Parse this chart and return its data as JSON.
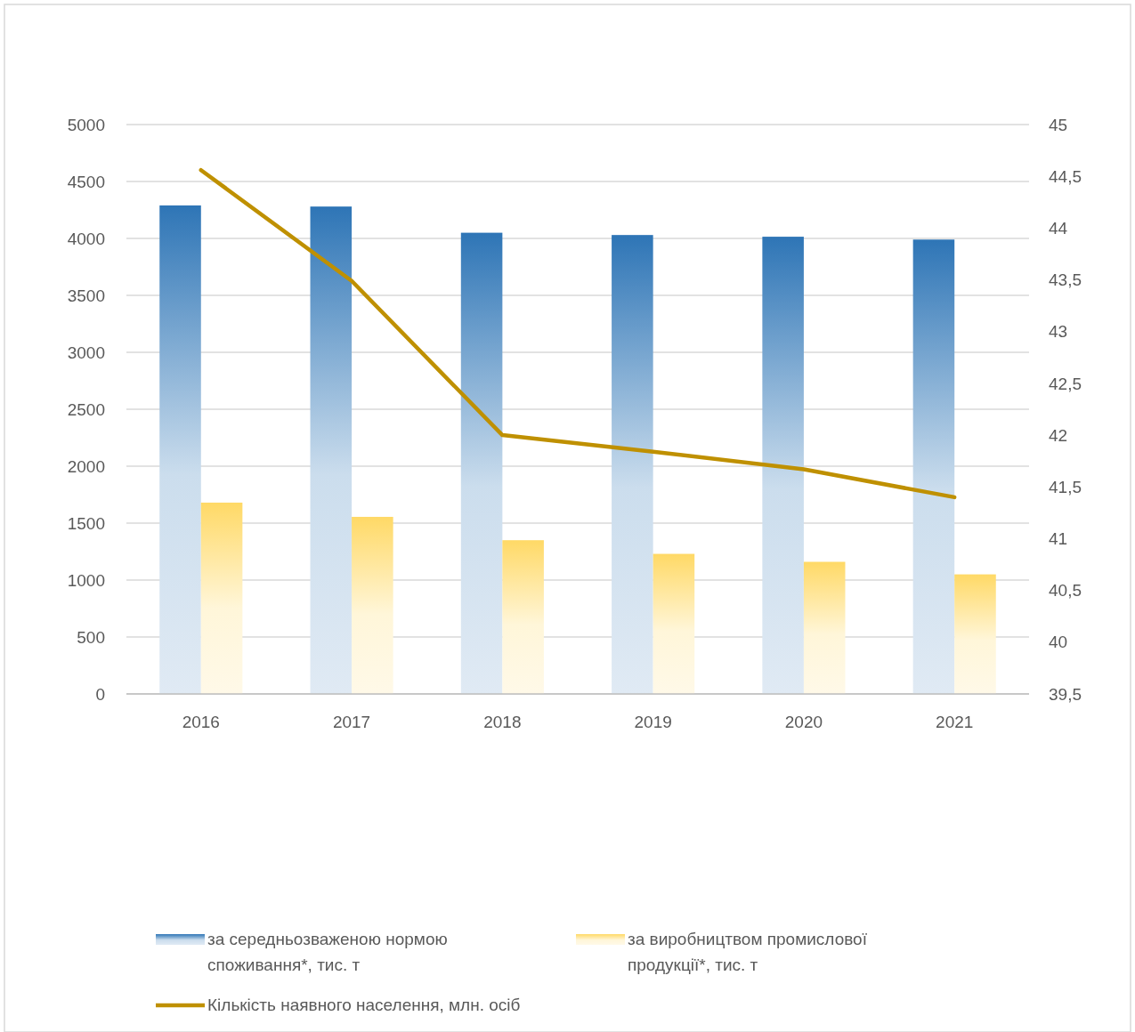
{
  "chart_data": {
    "type": "bar",
    "categories": [
      "2016",
      "2017",
      "2018",
      "2019",
      "2020",
      "2021"
    ],
    "series": [
      {
        "name": "за середньозваженою нормою споживання*, тис. т",
        "color": "#2e75b6",
        "values": [
          4290,
          4280,
          4050,
          4030,
          4015,
          3990
        ]
      },
      {
        "name": "за виробництвом промислової продукції*, тис. т",
        "color": "#ffd966",
        "values": [
          1680,
          1555,
          1350,
          1230,
          1160,
          1050
        ]
      },
      {
        "name": "Кількість наявного населення, млн. осіб",
        "type": "line",
        "axis": "y2",
        "color": "#bf9000",
        "values": [
          44.56,
          43.49,
          42.0,
          41.84,
          41.67,
          41.4
        ]
      }
    ],
    "ylim": [
      0,
      5000
    ],
    "yticks": [
      0,
      500,
      1000,
      1500,
      2000,
      2500,
      3000,
      3500,
      4000,
      4500,
      5000
    ],
    "y2lim": [
      39.5,
      45
    ],
    "y2ticks": [
      {
        "value": 39.5,
        "label": "39,5"
      },
      40,
      {
        "value": 40.5,
        "label": "40,5"
      },
      41,
      {
        "value": 41.5,
        "label": "41,5"
      },
      42,
      {
        "value": 42.5,
        "label": "42,5"
      },
      43,
      {
        "value": 43.5,
        "label": "43,5"
      },
      44,
      {
        "value": 44.5,
        "label": "44,5"
      },
      45
    ],
    "grid": "y",
    "legend": "bottom",
    "marker": "none",
    "line_style": "solid"
  }
}
